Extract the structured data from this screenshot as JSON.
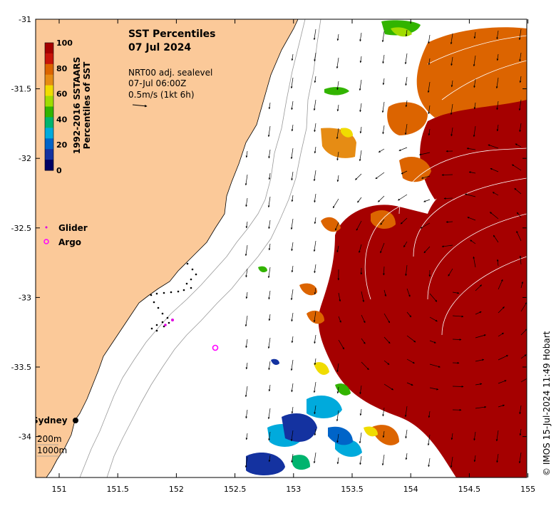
{
  "title": "SST Percentiles",
  "date": "07 Jul 2024",
  "info_lines": [
    "NRT00 adj. sealevel",
    "07-Jul 06:00Z",
    "0.5m/s (1kt 6h)"
  ],
  "colorbar": {
    "label_line1": "1992-2016 SSTAARS",
    "label_line2": "Percentiles of SST",
    "ticks": [
      "100",
      "80",
      "60",
      "40",
      "20",
      "0"
    ],
    "colors": [
      "#a50000",
      "#c8140a",
      "#dc6400",
      "#e68c14",
      "#f0dc00",
      "#a0dc00",
      "#32b400",
      "#00b46e",
      "#00aadc",
      "#0064c8",
      "#1432a0",
      "#000064"
    ]
  },
  "legend": {
    "glider": "Glider",
    "argo": "Argo"
  },
  "place_labels": {
    "sydney": "Sydney",
    "contour_200": "200m",
    "contour_1000": "1000m"
  },
  "axes": {
    "x_ticks": [
      "151",
      "151.5",
      "152",
      "152.5",
      "153",
      "153.5",
      "154",
      "154.5",
      "155"
    ],
    "y_ticks": [
      "-31",
      "-31.5",
      "-32",
      "-32.5",
      "-33",
      "-33.5",
      "-34"
    ]
  },
  "credit": "© IMOS 15-Jul-2024 11:49 Hobart",
  "colors": {
    "land": "#fbc999",
    "ocean": "#ffffff",
    "glider": "#e000e0",
    "argo": "#ff00ff"
  }
}
